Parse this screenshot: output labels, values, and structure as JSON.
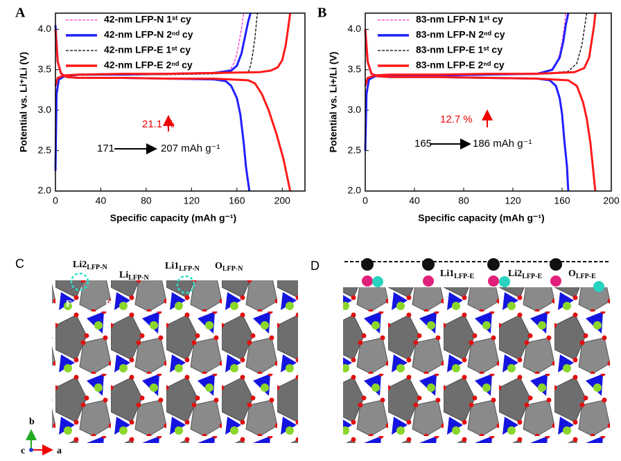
{
  "chart_data": [
    {
      "type": "line",
      "label": "A",
      "xlabel": "Specific capacity (mAh g⁻¹)",
      "ylabel": "Potential vs. Li⁺/Li (V)",
      "xlim": [
        0,
        220
      ],
      "ylim": [
        2.0,
        4.2
      ],
      "xticks": [
        0,
        40,
        80,
        120,
        160,
        200
      ],
      "yticks": [
        {
          "value": 2,
          "label": "2.0"
        },
        2.5,
        {
          "value": 3,
          "label": "3.0"
        },
        3.5,
        {
          "value": 4,
          "label": "4.0"
        }
      ],
      "series": [
        {
          "name": "42-nm LFP-N 1ˢᵗ cy",
          "color": "#ff33cc",
          "linestyle": "dashed",
          "x": [
            0,
            2,
            8,
            20,
            60,
            100,
            140,
            150,
            155,
            158,
            160,
            162,
            164,
            166,
            null,
            0,
            2,
            5,
            10,
            20,
            60,
            100,
            140,
            150,
            155,
            160,
            163,
            166,
            168,
            171
          ],
          "values": [
            3.35,
            3.4,
            3.42,
            3.43,
            3.44,
            3.44,
            3.45,
            3.47,
            3.52,
            3.6,
            3.7,
            3.85,
            4.0,
            4.2,
            null,
            4.05,
            3.6,
            3.45,
            3.41,
            3.4,
            3.4,
            3.39,
            3.38,
            3.36,
            3.3,
            3.15,
            2.95,
            2.6,
            2.3,
            2.0
          ]
        },
        {
          "name": "42-nm LFP-N 2ⁿᵈ cy",
          "color": "#1f1fff",
          "linestyle": "solid",
          "x": [
            0,
            1,
            3,
            8,
            20,
            60,
            100,
            140,
            155,
            160,
            164,
            167,
            170,
            172,
            null,
            0,
            2,
            5,
            10,
            20,
            60,
            100,
            140,
            150,
            155,
            160,
            163,
            166,
            168,
            171
          ],
          "values": [
            2.25,
            3.2,
            3.38,
            3.42,
            3.44,
            3.44,
            3.45,
            3.46,
            3.49,
            3.55,
            3.7,
            3.9,
            4.1,
            4.2,
            null,
            4.05,
            3.6,
            3.45,
            3.41,
            3.4,
            3.4,
            3.39,
            3.38,
            3.36,
            3.3,
            3.15,
            2.95,
            2.6,
            2.3,
            2.0
          ]
        },
        {
          "name": "42-nm LFP-E 1ˢᵗ cy",
          "color": "#000000",
          "linestyle": "dashed",
          "x": [
            0,
            2,
            8,
            20,
            60,
            100,
            140,
            170,
            172,
            174,
            176,
            177,
            178,
            null,
            0,
            2,
            5,
            10,
            20,
            60,
            100,
            140,
            170,
            176,
            182,
            188,
            195,
            201,
            207
          ],
          "values": [
            3.35,
            3.4,
            3.42,
            3.43,
            3.44,
            3.44,
            3.45,
            3.47,
            3.55,
            3.7,
            3.9,
            4.05,
            4.2,
            null,
            4.0,
            3.6,
            3.45,
            3.41,
            3.4,
            3.4,
            3.39,
            3.39,
            3.37,
            3.33,
            3.2,
            3.0,
            2.7,
            2.4,
            2.0
          ]
        },
        {
          "name": "42-nm LFP-E 2ⁿᵈ cy",
          "color": "#ff1a1a",
          "linestyle": "solid",
          "x": [
            0,
            2,
            8,
            20,
            60,
            100,
            140,
            180,
            190,
            196,
            200,
            203,
            205,
            207,
            null,
            0,
            2,
            5,
            10,
            20,
            60,
            100,
            140,
            170,
            176,
            182,
            188,
            195,
            201,
            207
          ],
          "values": [
            3.3,
            3.4,
            3.43,
            3.44,
            3.45,
            3.45,
            3.46,
            3.47,
            3.49,
            3.53,
            3.62,
            3.8,
            4.0,
            4.2,
            null,
            4.0,
            3.6,
            3.45,
            3.41,
            3.4,
            3.4,
            3.39,
            3.39,
            3.37,
            3.33,
            3.2,
            3.0,
            2.7,
            2.4,
            2.0
          ]
        }
      ],
      "annotations": [
        "21.1 %",
        "171",
        "207 mAh g⁻¹"
      ]
    },
    {
      "type": "line",
      "label": "B",
      "xlabel": "Specific capacity (mAh g⁻¹)",
      "ylabel": "Potential vs. Li+/Li (V)",
      "xlim": [
        0,
        200
      ],
      "ylim": [
        2.0,
        4.2
      ],
      "xticks": [
        0,
        40,
        80,
        120,
        160,
        200
      ],
      "yticks": [
        {
          "value": 2,
          "label": "2.0"
        },
        2.5,
        {
          "value": 3,
          "label": "3.0"
        },
        3.5,
        {
          "value": 4,
          "label": "4.0"
        }
      ],
      "series": [
        {
          "name": "83-nm LFP-N 1ˢᵗ cy",
          "color": "#ff33cc",
          "linestyle": "dashed",
          "x": [
            0,
            2,
            8,
            20,
            60,
            100,
            140,
            150,
            155,
            158,
            160,
            162,
            163,
            null,
            0,
            2,
            5,
            10,
            20,
            60,
            100,
            140,
            150,
            155,
            158,
            160,
            162,
            164,
            165
          ],
          "values": [
            3.35,
            3.4,
            3.42,
            3.43,
            3.44,
            3.44,
            3.46,
            3.49,
            3.55,
            3.7,
            3.85,
            4.05,
            4.2,
            null,
            4.0,
            3.6,
            3.45,
            3.42,
            3.41,
            3.41,
            3.4,
            3.39,
            3.37,
            3.3,
            3.15,
            2.95,
            2.6,
            2.3,
            2.0
          ]
        },
        {
          "name": "83-nm LFP-N 2ⁿᵈ cy",
          "color": "#1f1fff",
          "linestyle": "solid",
          "x": [
            0,
            1,
            3,
            8,
            20,
            60,
            100,
            140,
            152,
            158,
            161,
            163,
            165,
            null,
            0,
            2,
            5,
            10,
            20,
            60,
            100,
            140,
            150,
            155,
            158,
            160,
            162,
            164,
            165
          ],
          "values": [
            2.5,
            3.2,
            3.38,
            3.42,
            3.43,
            3.43,
            3.44,
            3.45,
            3.5,
            3.65,
            3.85,
            4.05,
            4.2,
            null,
            4.0,
            3.6,
            3.45,
            3.42,
            3.41,
            3.41,
            3.4,
            3.39,
            3.37,
            3.3,
            3.15,
            2.95,
            2.6,
            2.3,
            2.0
          ]
        },
        {
          "name": "83-nm LFP-E 1ˢᵗ cy",
          "color": "#000000",
          "linestyle": "dashed",
          "x": [
            0,
            2,
            8,
            20,
            60,
            100,
            140,
            165,
            172,
            176,
            178,
            180,
            null,
            0,
            2,
            5,
            10,
            20,
            60,
            100,
            140,
            165,
            172,
            177,
            180,
            183,
            185,
            187
          ],
          "values": [
            3.35,
            3.4,
            3.42,
            3.43,
            3.44,
            3.44,
            3.45,
            3.48,
            3.58,
            3.8,
            4.0,
            4.2,
            null,
            4.0,
            3.6,
            3.45,
            3.42,
            3.41,
            3.41,
            3.4,
            3.39,
            3.37,
            3.3,
            3.1,
            2.9,
            2.6,
            2.3,
            2.0
          ]
        },
        {
          "name": "83-nm LFP-E 2ⁿᵈ cy",
          "color": "#ff1a1a",
          "linestyle": "solid",
          "x": [
            0,
            2,
            8,
            20,
            60,
            100,
            140,
            170,
            178,
            182,
            184,
            186,
            187,
            null,
            0,
            2,
            5,
            10,
            20,
            60,
            100,
            140,
            165,
            172,
            177,
            180,
            183,
            185,
            187
          ],
          "values": [
            3.3,
            3.4,
            3.43,
            3.44,
            3.44,
            3.45,
            3.45,
            3.47,
            3.52,
            3.65,
            3.85,
            4.05,
            4.2,
            null,
            4.0,
            3.6,
            3.45,
            3.42,
            3.41,
            3.41,
            3.4,
            3.39,
            3.37,
            3.3,
            3.1,
            2.9,
            2.6,
            2.3,
            2.0
          ]
        }
      ],
      "annotations": [
        "12.7 %",
        "165",
        "186 mAh g⁻¹"
      ]
    }
  ],
  "structure_c": {
    "label": "C",
    "atoms": [
      {
        "main": "Li2",
        "sub": "LFP-N"
      },
      {
        "main": "Li",
        "sub": "LFP-N"
      },
      {
        "main": "Li1",
        "sub": "LFP-N"
      },
      {
        "main": "O",
        "sub": "LFP-N"
      }
    ],
    "polyhedra": [
      "Fe",
      "P"
    ],
    "axes": [
      "b",
      "c",
      "a"
    ]
  },
  "structure_d": {
    "label": "D",
    "atoms": [
      {
        "main": "Li1",
        "sub": "LFP-E"
      },
      {
        "main": "Li2",
        "sub": "LFP-E"
      },
      {
        "main": "O",
        "sub": "LFP-E"
      }
    ]
  }
}
